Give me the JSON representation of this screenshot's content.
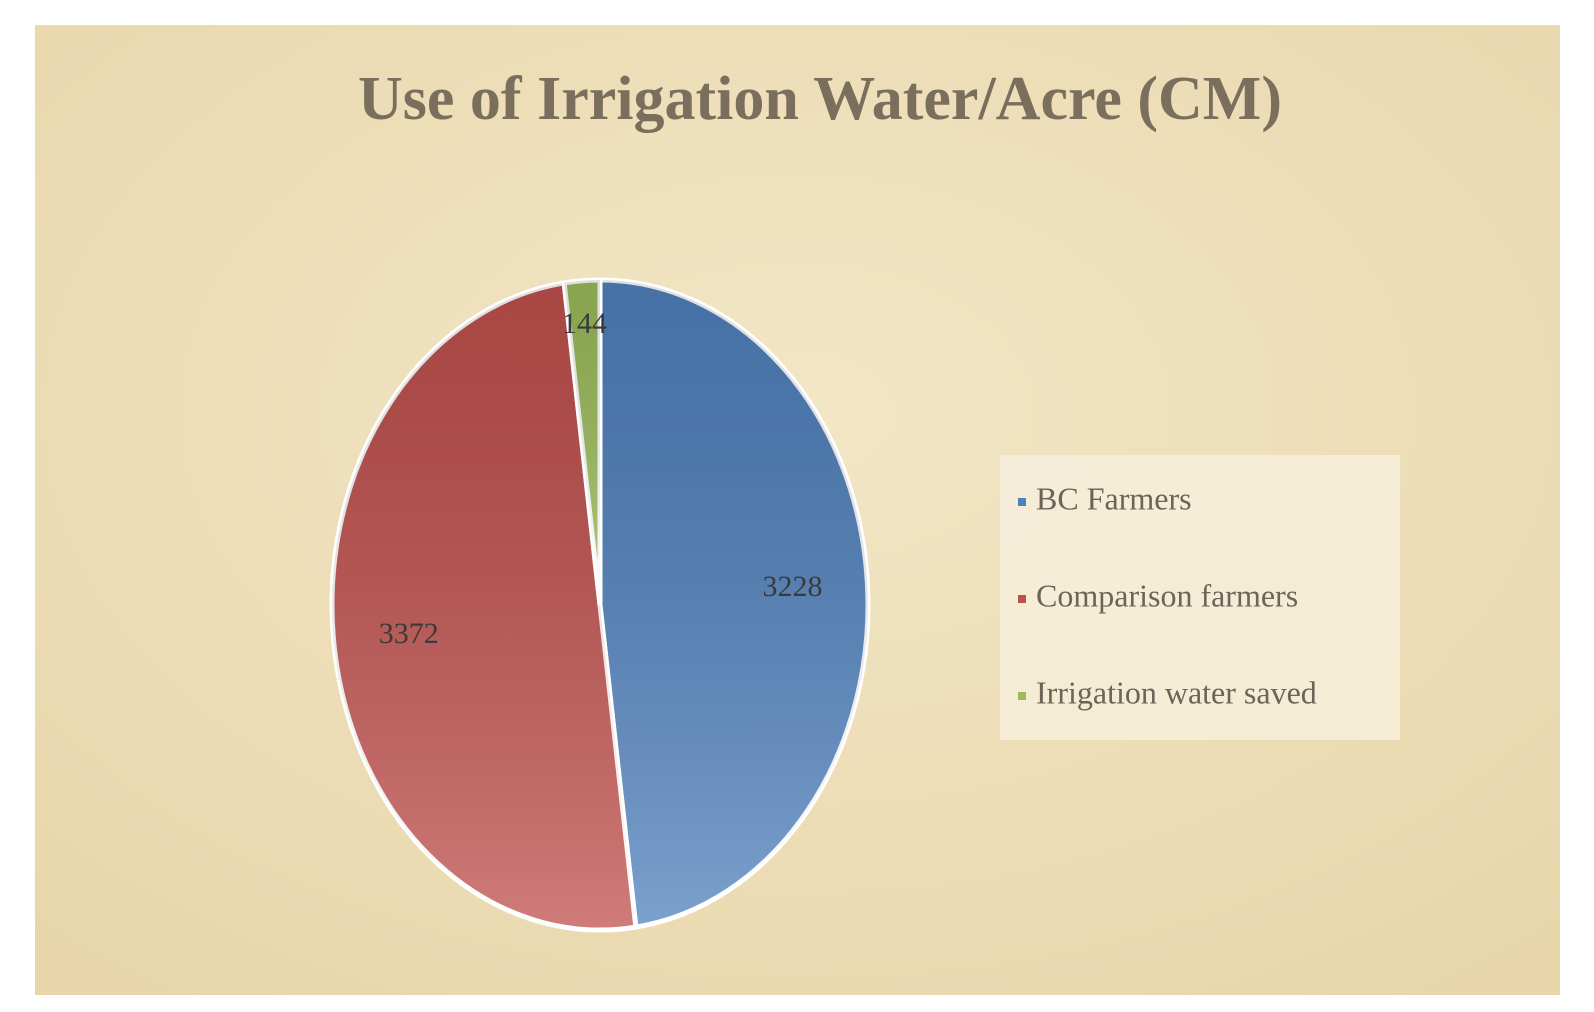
{
  "chart_data": {
    "type": "pie",
    "title": "Use of Irrigation Water/Acre (CM)",
    "categories": [
      "BC Farmers",
      "Comparison farmers",
      "Irrigation water saved"
    ],
    "values": [
      3228,
      3372,
      144
    ],
    "colors": [
      "#4f81bd",
      "#c0504d",
      "#9bbb59"
    ],
    "legend": "right"
  }
}
